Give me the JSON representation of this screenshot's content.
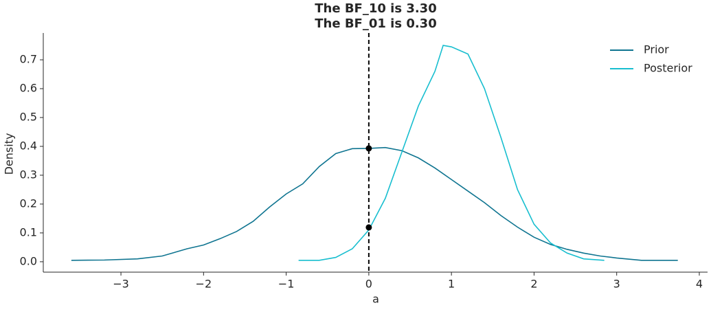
{
  "chart_data": {
    "type": "line",
    "title": [
      "The BF_10 is 3.30",
      "The BF_01 is 0.30"
    ],
    "xlabel": "a",
    "ylabel": "Density",
    "series": [
      {
        "name": "Prior",
        "color": "#0e7490",
        "x": [
          -3.6,
          -3.2,
          -2.8,
          -2.5,
          -2.2,
          -2.0,
          -1.8,
          -1.6,
          -1.4,
          -1.2,
          -1.0,
          -0.8,
          -0.6,
          -0.4,
          -0.2,
          0,
          0.2,
          0.4,
          0.6,
          0.8,
          1.0,
          1.2,
          1.4,
          1.6,
          1.8,
          2.0,
          2.2,
          2.4,
          2.6,
          2.8,
          3.0,
          3.3,
          3.74
        ],
        "values": [
          0.005,
          0.006,
          0.01,
          0.02,
          0.045,
          0.058,
          0.08,
          0.105,
          0.14,
          0.19,
          0.235,
          0.27,
          0.33,
          0.375,
          0.392,
          0.393,
          0.396,
          0.385,
          0.36,
          0.325,
          0.285,
          0.245,
          0.205,
          0.16,
          0.12,
          0.085,
          0.06,
          0.043,
          0.03,
          0.02,
          0.013,
          0.005,
          0.005
        ]
      },
      {
        "name": "Posterior",
        "color": "#17becf",
        "x": [
          -0.85,
          -0.6,
          -0.4,
          -0.2,
          0,
          0.2,
          0.4,
          0.6,
          0.8,
          0.9,
          1.0,
          1.2,
          1.4,
          1.6,
          1.8,
          2.0,
          2.2,
          2.4,
          2.6,
          2.85
        ],
        "values": [
          0.005,
          0.005,
          0.015,
          0.045,
          0.11,
          0.22,
          0.38,
          0.54,
          0.66,
          0.75,
          0.745,
          0.72,
          0.6,
          0.43,
          0.25,
          0.13,
          0.065,
          0.03,
          0.01,
          0.005
        ]
      }
    ],
    "points": {
      "x": [
        0,
        0
      ],
      "values": [
        0.393,
        0.119
      ],
      "color": "#000000"
    },
    "vline": {
      "x": 0,
      "color": "#000000"
    },
    "xlim": [
      -3.94,
      4.1
    ],
    "ylim": [
      -0.036,
      0.793
    ],
    "xticks": [
      {
        "value": -3,
        "label": "−3"
      },
      {
        "value": -2,
        "label": "−2"
      },
      {
        "value": -1,
        "label": "−1"
      },
      0,
      1,
      2,
      3,
      4
    ],
    "yticks": [
      {
        "value": 0,
        "label": "0.0"
      },
      0.1,
      0.2,
      0.3,
      0.4,
      0.5,
      0.6,
      0.7
    ],
    "legend": "upper right"
  }
}
